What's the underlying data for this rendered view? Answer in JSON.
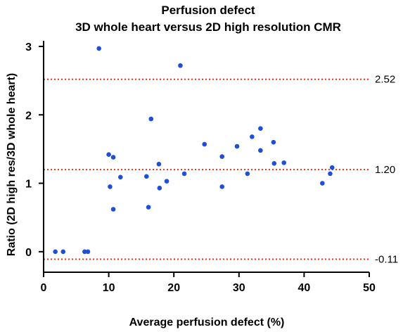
{
  "chart_data": {
    "type": "scatter",
    "title": "Perfusion defect",
    "subtitle": "3D whole heart versus 2D high resolution CMR",
    "xlabel": "Average perfusion defect (%)",
    "ylabel": "Ratio (2D high res/3D whole heart)",
    "xlim": [
      0,
      50
    ],
    "ylim": [
      -0.3,
      3
    ],
    "x_ticks": [
      0,
      10,
      20,
      30,
      40,
      50
    ],
    "y_ticks": [
      0,
      1,
      2,
      3
    ],
    "grid": false,
    "point_color": "#1f4fd8",
    "reference_color": "#e0341f",
    "reference_lines": [
      {
        "value": 2.52,
        "label": "2.52"
      },
      {
        "value": 1.2,
        "label": "1.20"
      },
      {
        "value": -0.11,
        "label": "-0.11"
      }
    ],
    "points": [
      {
        "x": 1.8,
        "y": 0.0
      },
      {
        "x": 3.0,
        "y": 0.0
      },
      {
        "x": 6.3,
        "y": 0.0
      },
      {
        "x": 6.8,
        "y": 0.0
      },
      {
        "x": 8.5,
        "y": 2.97
      },
      {
        "x": 10.0,
        "y": 1.42
      },
      {
        "x": 10.2,
        "y": 0.95
      },
      {
        "x": 10.7,
        "y": 1.38
      },
      {
        "x": 10.7,
        "y": 0.62
      },
      {
        "x": 11.8,
        "y": 1.09
      },
      {
        "x": 15.8,
        "y": 1.1
      },
      {
        "x": 16.1,
        "y": 0.65
      },
      {
        "x": 16.5,
        "y": 1.94
      },
      {
        "x": 17.7,
        "y": 1.28
      },
      {
        "x": 17.8,
        "y": 0.93
      },
      {
        "x": 18.9,
        "y": 1.03
      },
      {
        "x": 21.0,
        "y": 2.72
      },
      {
        "x": 21.6,
        "y": 1.14
      },
      {
        "x": 24.7,
        "y": 1.57
      },
      {
        "x": 27.4,
        "y": 1.39
      },
      {
        "x": 27.4,
        "y": 0.95
      },
      {
        "x": 29.7,
        "y": 1.54
      },
      {
        "x": 31.3,
        "y": 1.14
      },
      {
        "x": 32.0,
        "y": 1.68
      },
      {
        "x": 33.3,
        "y": 1.8
      },
      {
        "x": 33.3,
        "y": 1.48
      },
      {
        "x": 35.3,
        "y": 1.6
      },
      {
        "x": 35.4,
        "y": 1.29
      },
      {
        "x": 36.9,
        "y": 1.3
      },
      {
        "x": 42.8,
        "y": 1.0
      },
      {
        "x": 44.0,
        "y": 1.14
      },
      {
        "x": 44.3,
        "y": 1.23
      }
    ]
  }
}
